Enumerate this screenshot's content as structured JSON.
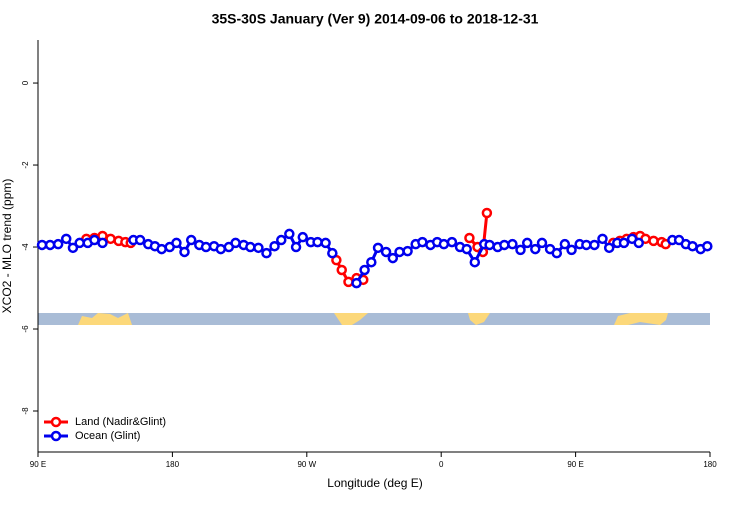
{
  "chart_data": {
    "type": "line",
    "title": "35S-30S January (Ver 9)   2014-09-06 to 2018-12-31",
    "xlabel": "Longitude (deg E)",
    "ylabel": "XCO2 - MLO trend (ppm)",
    "xlim": [
      0,
      5
    ],
    "xticks": [
      {
        "value": 0,
        "label": "90 E"
      },
      {
        "value": 1,
        "label": "180"
      },
      {
        "value": 2,
        "label": "90 W"
      },
      {
        "value": 3,
        "label": "0"
      },
      {
        "value": 4,
        "label": "90 E"
      },
      {
        "value": 5,
        "label": "180"
      }
    ],
    "ylim": [
      -9,
      1.05
    ],
    "yticks": [
      0,
      -2,
      -4,
      -6,
      -8
    ],
    "legend": "bottom-left",
    "series": [
      {
        "name": "Land (Nadir&Glint)",
        "color": "#ff0000",
        "x": [
          0.36,
          0.42,
          0.48,
          0.54,
          0.6,
          0.65,
          0.69,
          null,
          2.22,
          2.26,
          2.31,
          2.37,
          2.42,
          null,
          3.21,
          3.27,
          3.31,
          3.34,
          null,
          4.28,
          4.33,
          4.38,
          4.43,
          4.48,
          4.52,
          4.58,
          4.64,
          4.67
        ],
        "values": [
          -3.8,
          -3.78,
          -3.73,
          -3.8,
          -3.85,
          -3.88,
          -3.9,
          null,
          -4.32,
          -4.56,
          -4.85,
          -4.76,
          -4.8,
          null,
          -3.78,
          -4.0,
          -4.12,
          -3.17,
          null,
          -3.9,
          -3.85,
          -3.8,
          -3.76,
          -3.73,
          -3.8,
          -3.85,
          -3.88,
          -3.93
        ]
      },
      {
        "name": "Ocean (Glint)",
        "color": "#0000ee",
        "x": [
          0.03,
          0.09,
          0.15,
          0.21,
          0.26,
          0.31,
          0.37,
          0.42,
          0.48,
          null,
          0.71,
          0.76,
          0.82,
          0.87,
          0.92,
          0.98,
          1.03,
          1.09,
          1.14,
          1.2,
          1.25,
          1.31,
          1.36,
          1.42,
          1.47,
          1.53,
          1.58,
          1.64,
          1.7,
          1.76,
          1.81,
          1.87,
          1.92,
          1.97,
          2.03,
          2.08,
          2.14,
          2.19,
          null,
          2.37,
          2.43,
          2.48,
          2.53,
          2.59,
          2.64,
          2.69,
          2.75,
          2.81,
          2.86,
          2.92,
          2.97,
          3.02,
          3.08,
          3.14,
          3.19,
          3.25,
          3.32,
          3.36,
          3.42,
          3.47,
          3.53,
          3.59,
          3.64,
          3.7,
          3.75,
          3.81,
          3.86,
          3.92,
          3.97,
          4.03,
          4.08,
          4.14,
          4.2,
          4.25,
          4.31,
          4.36,
          4.42,
          4.47,
          null,
          4.72,
          4.77,
          4.82,
          4.87,
          4.93,
          4.98
        ],
        "values": [
          -3.95,
          -3.95,
          -3.93,
          -3.8,
          -4.02,
          -3.9,
          -3.9,
          -3.83,
          -3.9,
          null,
          -3.83,
          -3.83,
          -3.93,
          -3.98,
          -4.05,
          -4.0,
          -3.9,
          -4.12,
          -3.83,
          -3.95,
          -4.0,
          -3.98,
          -4.05,
          -4.0,
          -3.9,
          -3.95,
          -4.0,
          -4.02,
          -4.15,
          -3.98,
          -3.83,
          -3.68,
          -4.0,
          -3.76,
          -3.88,
          -3.88,
          -3.9,
          -4.15,
          null,
          -4.88,
          -4.56,
          -4.37,
          -4.02,
          -4.12,
          -4.27,
          -4.12,
          -4.1,
          -3.93,
          -3.88,
          -3.95,
          -3.88,
          -3.93,
          -3.88,
          -4.0,
          -4.05,
          -4.37,
          -3.93,
          -3.95,
          -4.0,
          -3.95,
          -3.93,
          -4.07,
          -3.9,
          -4.05,
          -3.9,
          -4.05,
          -4.15,
          -3.93,
          -4.07,
          -3.93,
          -3.95,
          -3.95,
          -3.8,
          -4.02,
          -3.9,
          -3.9,
          -3.8,
          -3.9,
          null,
          -3.83,
          -3.83,
          -3.93,
          -3.98,
          -4.05,
          -3.98
        ]
      }
    ]
  }
}
